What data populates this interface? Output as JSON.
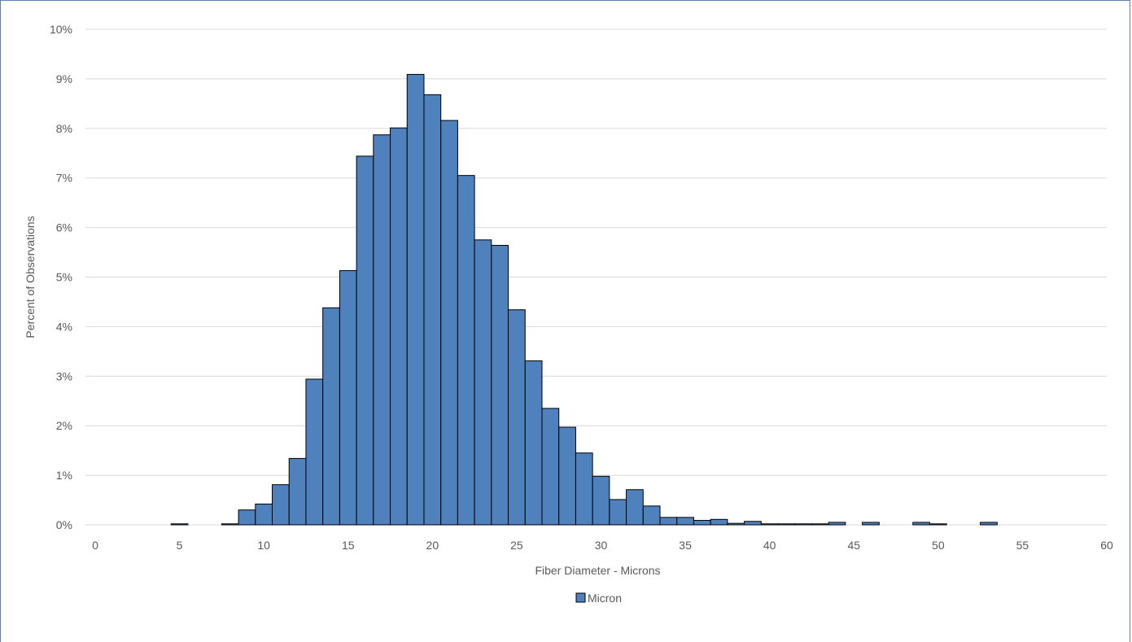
{
  "chart_data": {
    "type": "bar",
    "title": "",
    "xlabel": "Fiber Diameter - Microns",
    "ylabel": "Percent of Observations",
    "xlim": [
      0,
      60
    ],
    "ylim": [
      0,
      0.1
    ],
    "x_ticks": [
      "0",
      "5",
      "10",
      "15",
      "20",
      "25",
      "30",
      "35",
      "40",
      "45",
      "50",
      "55",
      "60"
    ],
    "x_tick_values": [
      0,
      5,
      10,
      15,
      20,
      25,
      30,
      35,
      40,
      45,
      50,
      55,
      60
    ],
    "y_ticks": [
      "0%",
      "1%",
      "2%",
      "3%",
      "4%",
      "5%",
      "6%",
      "7%",
      "8%",
      "9%",
      "10%"
    ],
    "y_tick_values": [
      0,
      0.01,
      0.02,
      0.03,
      0.04,
      0.05,
      0.06,
      0.07,
      0.08,
      0.09,
      0.1
    ],
    "bin_width": 1,
    "grid": true,
    "legend_position": "bottom",
    "bar_color": "#4f81bd",
    "bar_edge_color": "#000000",
    "series": [
      {
        "name": "Micron",
        "x": [
          5,
          8,
          9,
          10,
          11,
          12,
          13,
          14,
          15,
          16,
          17,
          18,
          19,
          20,
          21,
          22,
          23,
          24,
          25,
          26,
          27,
          28,
          29,
          30,
          31,
          32,
          33,
          34,
          35,
          36,
          37,
          38,
          39,
          40,
          41,
          42,
          43,
          44,
          46,
          49,
          50,
          53
        ],
        "values": [
          0.0002,
          0.0002,
          0.003,
          0.0042,
          0.0081,
          0.0134,
          0.0294,
          0.0438,
          0.0513,
          0.0744,
          0.0787,
          0.0801,
          0.0909,
          0.0868,
          0.0816,
          0.0705,
          0.0575,
          0.0564,
          0.0434,
          0.0331,
          0.0235,
          0.0197,
          0.0145,
          0.0098,
          0.0051,
          0.0071,
          0.0038,
          0.0015,
          0.0015,
          0.0009,
          0.0011,
          0.0003,
          0.0007,
          0.0002,
          0.0002,
          0.0002,
          0.0002,
          0.0005,
          0.0005,
          0.0005,
          0.0002,
          0.0005
        ]
      }
    ]
  }
}
